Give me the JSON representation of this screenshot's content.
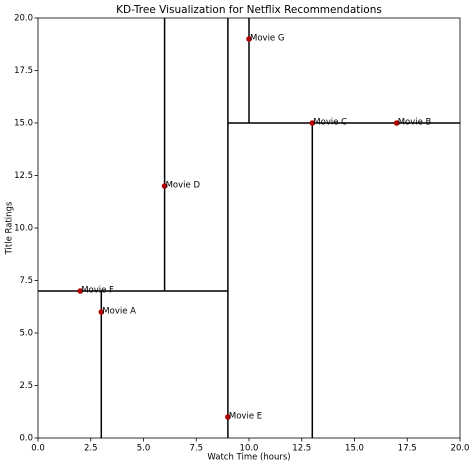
{
  "chart_data": {
    "type": "scatter",
    "title": "KD-Tree Visualization for Netflix Recommendations",
    "x_label": "Watch Time (hours)",
    "y_label": "Title Ratings",
    "labels": [
      "Movie A",
      "Movie B",
      "Movie C",
      "Movie D",
      "Movie E",
      "Movie F",
      "Movie G"
    ],
    "x": [
      3,
      17,
      13,
      6,
      9,
      2,
      10
    ],
    "values": [
      6,
      15,
      15,
      12,
      1,
      7,
      19
    ],
    "color": "#b00000",
    "split_color": "#000000",
    "splits": [
      {
        "x": [
          9,
          9
        ],
        "y": [
          0,
          20
        ]
      },
      {
        "x": [
          0,
          9
        ],
        "y": [
          7,
          7
        ]
      },
      {
        "x": [
          3,
          3
        ],
        "y": [
          0,
          7
        ]
      },
      {
        "x": [
          6,
          6
        ],
        "y": [
          7,
          20
        ]
      },
      {
        "x": [
          9,
          20
        ],
        "y": [
          15,
          15
        ]
      },
      {
        "x": [
          13,
          13
        ],
        "y": [
          0,
          15
        ]
      },
      {
        "x": [
          10,
          10
        ],
        "y": [
          15,
          20
        ]
      }
    ],
    "xlim": [
      0,
      20
    ],
    "ylim": [
      0,
      20
    ],
    "xticks": [
      {
        "value": 0,
        "label": "0.0"
      },
      2.5,
      {
        "value": 5,
        "label": "5.0"
      },
      7.5,
      {
        "value": 10,
        "label": "10.0"
      },
      12.5,
      {
        "value": 15,
        "label": "15.0"
      },
      17.5,
      {
        "value": 20,
        "label": "20.0"
      }
    ],
    "yticks": [
      {
        "value": 0,
        "label": "0.0"
      },
      2.5,
      {
        "value": 5,
        "label": "5.0"
      },
      7.5,
      {
        "value": 10,
        "label": "10.0"
      },
      12.5,
      {
        "value": 15,
        "label": "15.0"
      },
      17.5,
      {
        "value": 20,
        "label": "20.0"
      }
    ]
  }
}
